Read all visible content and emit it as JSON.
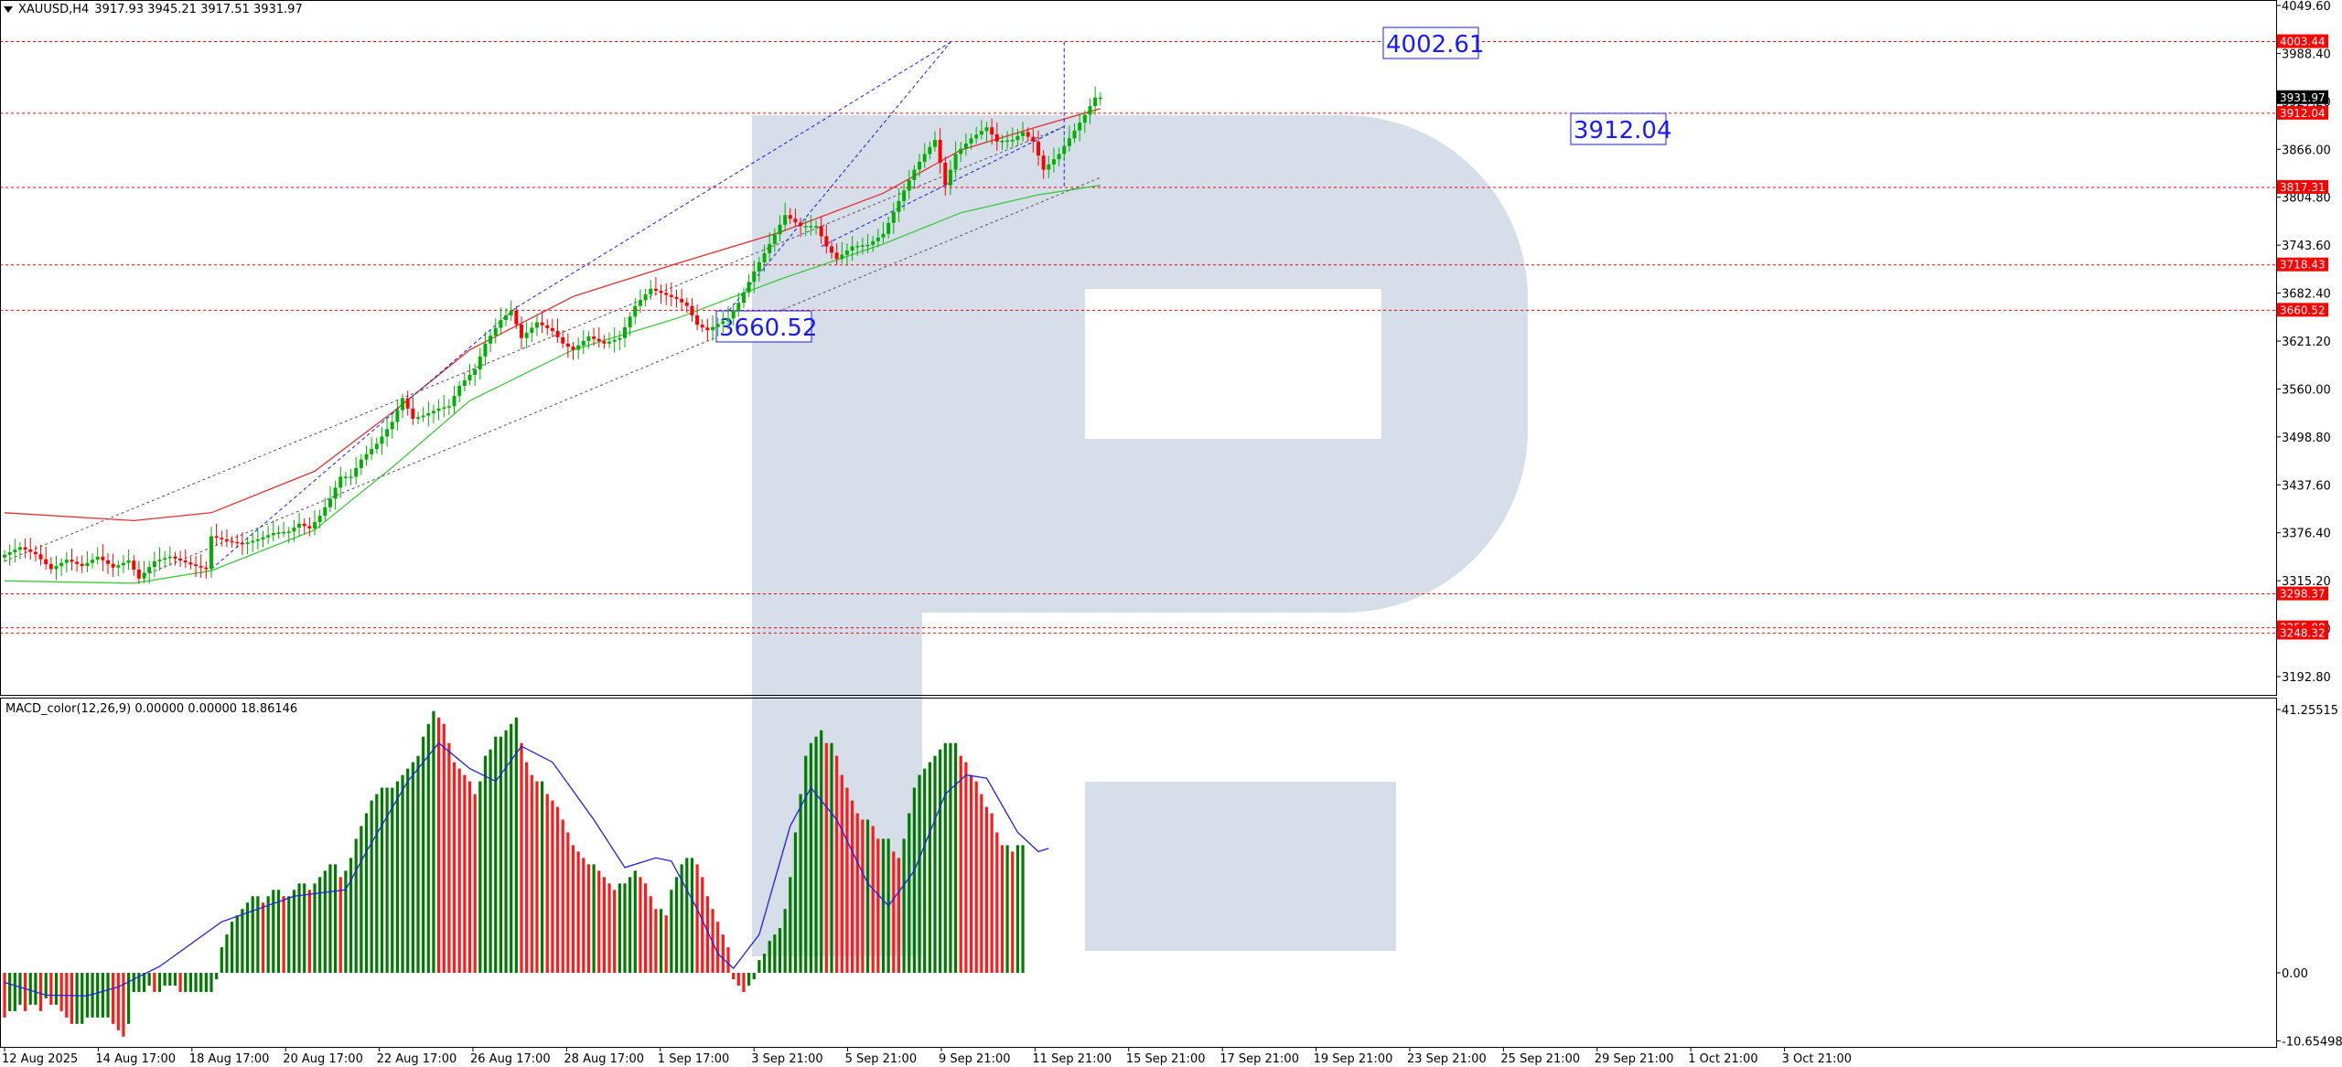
{
  "header": {
    "symbol": "XAUUSD,H4",
    "ohlc": "3917.93 3945.21 3917.51 3931.97"
  },
  "macd_header": {
    "label": "MACD_color(12,26,9) 0.00000 0.00000 18.86146"
  },
  "colors": {
    "bull": "#00b000",
    "bear": "#ff0000",
    "hist_bull": "#007a00",
    "hist_bear": "#ff1a1a",
    "ma_fast": "#e03030",
    "ma_slow": "#3ec83e",
    "signal": "#2020e0",
    "level": "#ff0000",
    "annotation": "#1a1aff",
    "watermark": "#d6dee9"
  },
  "chart_data": [
    {
      "type": "candlestick",
      "title": "XAUUSD,H4",
      "x_labels": [
        "12 Aug 2025",
        "14 Aug 17:00",
        "18 Aug 17:00",
        "20 Aug 17:00",
        "22 Aug 17:00",
        "26 Aug 17:00",
        "28 Aug 17:00",
        "1 Sep 17:00",
        "3 Sep 21:00",
        "5 Sep 21:00",
        "9 Sep 21:00",
        "11 Sep 21:00",
        "15 Sep 21:00",
        "17 Sep 21:00",
        "19 Sep 21:00",
        "23 Sep 21:00",
        "25 Sep 21:00",
        "29 Sep 21:00",
        "1 Oct 21:00",
        "3 Oct 21:00"
      ],
      "y_ticks": [
        "4049.60",
        "3988.40",
        "3927.20",
        "3866.00",
        "3804.80",
        "3743.60",
        "3682.40",
        "3621.20",
        "3560.00",
        "3498.80",
        "3437.60",
        "3376.40",
        "3315.20",
        "3254.00",
        "3192.80"
      ],
      "ylim": [
        3164,
        4060
      ],
      "current_price": "3931.97",
      "price_levels": [
        "4003.44",
        "3912.04",
        "3817.31",
        "3718.43",
        "3660.52",
        "3298.37",
        "3255.08",
        "3248.32"
      ],
      "annotations": [
        "4002.61",
        "3912.04",
        "3660.52"
      ],
      "price_path": [
        [
          0,
          3345
        ],
        [
          4,
          3358
        ],
        [
          7,
          3349
        ],
        [
          10,
          3330
        ],
        [
          13,
          3342
        ],
        [
          16,
          3334
        ],
        [
          19,
          3346
        ],
        [
          22,
          3332
        ],
        [
          25,
          3341
        ],
        [
          27,
          3318
        ],
        [
          30,
          3340
        ],
        [
          33,
          3346
        ],
        [
          37,
          3336
        ],
        [
          40,
          3330
        ],
        [
          41,
          3372
        ],
        [
          44,
          3366
        ],
        [
          47,
          3362
        ],
        [
          50,
          3368
        ],
        [
          53,
          3376
        ],
        [
          56,
          3378
        ],
        [
          58,
          3388
        ],
        [
          60,
          3382
        ],
        [
          62,
          3398
        ],
        [
          64,
          3420
        ],
        [
          66,
          3448
        ],
        [
          68,
          3448
        ],
        [
          70,
          3470
        ],
        [
          73,
          3490
        ],
        [
          76,
          3518
        ],
        [
          78,
          3548
        ],
        [
          80,
          3522
        ],
        [
          82,
          3526
        ],
        [
          85,
          3535
        ],
        [
          87,
          3538
        ],
        [
          89,
          3564
        ],
        [
          92,
          3585
        ],
        [
          94,
          3618
        ],
        [
          97,
          3648
        ],
        [
          99,
          3660
        ],
        [
          101,
          3625
        ],
        [
          104,
          3645
        ],
        [
          107,
          3634
        ],
        [
          109,
          3618
        ],
        [
          111,
          3610
        ],
        [
          114,
          3627
        ],
        [
          117,
          3618
        ],
        [
          120,
          3625
        ],
        [
          123,
          3666
        ],
        [
          126,
          3688
        ],
        [
          129,
          3680
        ],
        [
          131,
          3675
        ],
        [
          133,
          3666
        ],
        [
          135,
          3642
        ],
        [
          137,
          3635
        ],
        [
          139,
          3643
        ],
        [
          141,
          3650
        ],
        [
          143,
          3670
        ],
        [
          146,
          3710
        ],
        [
          149,
          3745
        ],
        [
          152,
          3782
        ],
        [
          155,
          3768
        ],
        [
          158,
          3768
        ],
        [
          160,
          3742
        ],
        [
          162,
          3726
        ],
        [
          165,
          3742
        ],
        [
          168,
          3744
        ],
        [
          171,
          3758
        ],
        [
          174,
          3800
        ],
        [
          177,
          3840
        ],
        [
          179,
          3860
        ],
        [
          181,
          3878
        ],
        [
          183,
          3820
        ],
        [
          185,
          3860
        ],
        [
          188,
          3880
        ],
        [
          191,
          3894
        ],
        [
          193,
          3876
        ],
        [
          196,
          3878
        ],
        [
          198,
          3888
        ],
        [
          200,
          3876
        ],
        [
          202,
          3840
        ],
        [
          205,
          3860
        ],
        [
          208,
          3890
        ],
        [
          210,
          3910
        ],
        [
          212,
          3932
        ]
      ],
      "ma_fast_path": [
        [
          0,
          3402
        ],
        [
          25,
          3392
        ],
        [
          40,
          3402
        ],
        [
          60,
          3455
        ],
        [
          75,
          3530
        ],
        [
          90,
          3610
        ],
        [
          110,
          3678
        ],
        [
          130,
          3720
        ],
        [
          150,
          3760
        ],
        [
          170,
          3810
        ],
        [
          185,
          3865
        ],
        [
          200,
          3895
        ],
        [
          212,
          3918
        ]
      ],
      "ma_slow_path": [
        [
          0,
          3315
        ],
        [
          25,
          3312
        ],
        [
          40,
          3328
        ],
        [
          60,
          3380
        ],
        [
          75,
          3460
        ],
        [
          90,
          3545
        ],
        [
          110,
          3610
        ],
        [
          130,
          3650
        ],
        [
          150,
          3700
        ],
        [
          170,
          3745
        ],
        [
          185,
          3785
        ],
        [
          200,
          3808
        ],
        [
          212,
          3820
        ]
      ]
    },
    {
      "type": "bar",
      "title": "MACD_color(12,26,9)",
      "y_ticks": [
        "41.25515",
        "0.00",
        "-10.65498"
      ],
      "ylim": [
        -10.65498,
        41.25515
      ],
      "signal_path": [
        [
          0,
          -1.5
        ],
        [
          8,
          -3.5
        ],
        [
          16,
          -3.6
        ],
        [
          22,
          -2.2
        ],
        [
          30,
          1
        ],
        [
          42,
          8
        ],
        [
          56,
          12
        ],
        [
          66,
          13
        ],
        [
          70,
          19
        ],
        [
          78,
          30
        ],
        [
          84,
          36
        ],
        [
          90,
          32
        ],
        [
          95,
          30
        ],
        [
          100,
          35.5
        ],
        [
          106,
          33
        ],
        [
          114,
          24
        ],
        [
          120,
          16.5
        ],
        [
          126,
          18
        ],
        [
          129,
          17.5
        ],
        [
          134,
          10
        ],
        [
          138,
          3
        ],
        [
          141,
          0.7
        ],
        [
          146,
          6
        ],
        [
          152,
          23
        ],
        [
          156,
          29
        ],
        [
          161,
          24
        ],
        [
          167,
          14
        ],
        [
          171,
          10.5
        ],
        [
          176,
          16
        ],
        [
          182,
          28
        ],
        [
          186,
          31
        ],
        [
          190,
          30.5
        ],
        [
          196,
          22
        ],
        [
          200,
          19
        ],
        [
          202,
          19.5
        ]
      ],
      "histogram_heights": [
        -7,
        -6,
        -6,
        -5,
        -6,
        -5,
        -5,
        -6,
        -4,
        -5,
        -5,
        -6,
        -7,
        -8,
        -8,
        -8,
        -7,
        -7,
        -7,
        -7,
        -7,
        -8,
        -9,
        -10,
        -8,
        -3,
        -3,
        -3,
        -2,
        -3,
        -3,
        -2,
        -2,
        -2,
        -3,
        -3,
        -3,
        -3,
        -3,
        -3,
        -3,
        -1,
        4,
        6,
        8,
        9,
        10,
        11,
        12,
        12,
        11,
        12,
        13,
        13,
        12,
        12,
        13,
        14,
        14,
        13,
        14,
        15,
        16,
        17,
        17,
        15,
        16,
        18,
        21,
        23,
        25,
        27,
        28,
        29,
        29,
        29,
        30,
        31,
        32,
        33,
        34,
        37,
        39,
        41,
        40,
        39,
        36,
        33,
        32,
        31,
        30,
        28,
        30,
        34,
        35,
        37,
        37,
        38,
        39,
        40,
        36,
        33,
        31,
        30,
        30,
        28,
        27,
        26,
        24,
        22,
        20,
        19,
        18,
        17,
        17,
        16,
        15,
        14,
        13,
        14,
        14,
        15,
        16,
        15,
        14,
        12,
        10,
        10,
        9,
        13,
        15,
        17,
        18,
        18,
        17,
        15,
        12,
        10,
        8,
        6,
        4,
        -1,
        -2,
        -3,
        -2,
        -1,
        2,
        3,
        5,
        6,
        7,
        10,
        15,
        22,
        28,
        34,
        36,
        37,
        38,
        36,
        36,
        34,
        31,
        29,
        27,
        25,
        24,
        24,
        23,
        21,
        21,
        21,
        19,
        18,
        21,
        25,
        29,
        31,
        32,
        33,
        34,
        35,
        36,
        36,
        36,
        34,
        33,
        31,
        30,
        28,
        26,
        25,
        22,
        20,
        20,
        19,
        20,
        20
      ]
    }
  ]
}
